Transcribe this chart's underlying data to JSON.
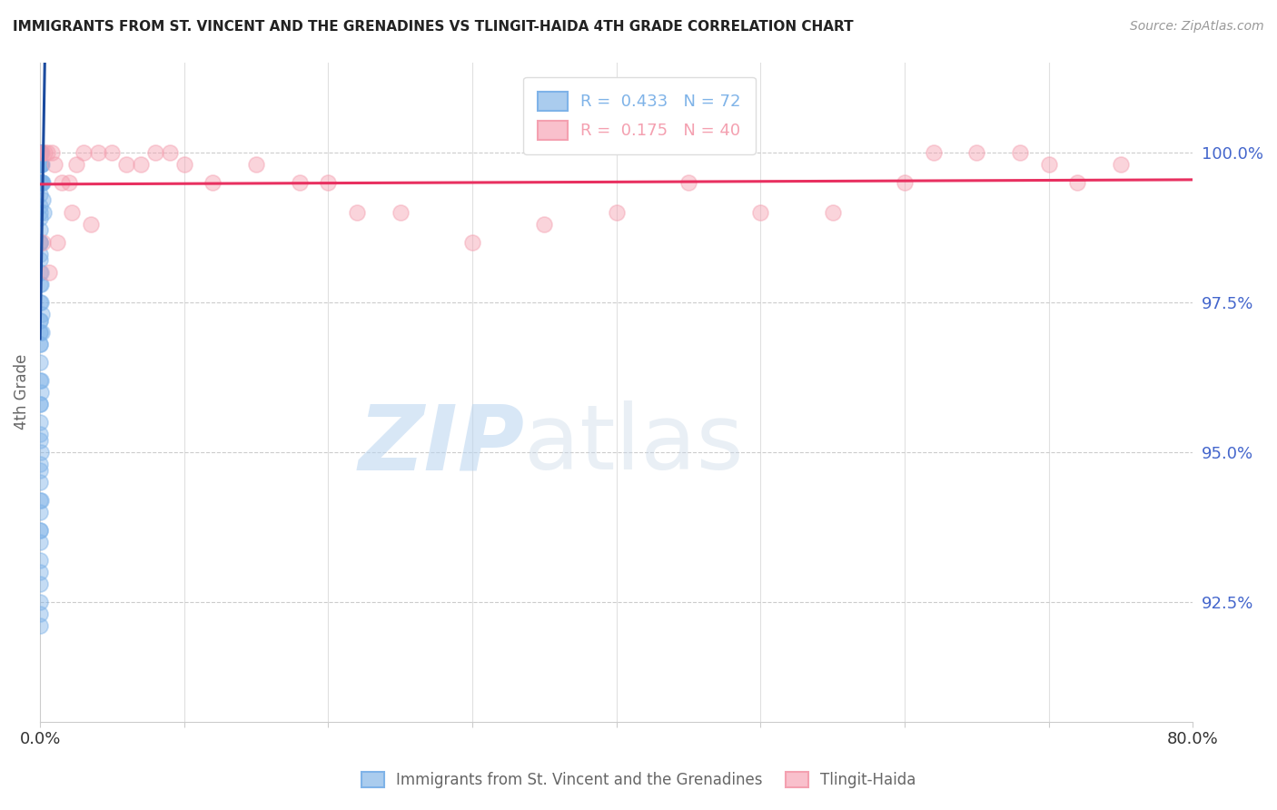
{
  "title": "IMMIGRANTS FROM ST. VINCENT AND THE GRENADINES VS TLINGIT-HAIDA 4TH GRADE CORRELATION CHART",
  "source": "Source: ZipAtlas.com",
  "ylabel": "4th Grade",
  "yticks": [
    92.5,
    95.0,
    97.5,
    100.0
  ],
  "ytick_labels": [
    "92.5%",
    "95.0%",
    "97.5%",
    "100.0%"
  ],
  "xlim": [
    0.0,
    80.0
  ],
  "ylim": [
    90.5,
    101.5
  ],
  "blue_label": "Immigrants from St. Vincent and the Grenadines",
  "pink_label": "Tlingit-Haida",
  "blue_R": 0.433,
  "blue_N": 72,
  "pink_R": 0.175,
  "pink_N": 40,
  "blue_color": "#7fb3e8",
  "pink_color": "#f4a0b0",
  "blue_line_color": "#1a4a9e",
  "pink_line_color": "#e83060",
  "watermark_zip": "ZIP",
  "watermark_atlas": "atlas",
  "blue_x": [
    0.0,
    0.0,
    0.0,
    0.0,
    0.0,
    0.0,
    0.0,
    0.0,
    0.02,
    0.03,
    0.04,
    0.05,
    0.06,
    0.07,
    0.08,
    0.09,
    0.1,
    0.12,
    0.15,
    0.18,
    0.2,
    0.25,
    0.0,
    0.0,
    0.0,
    0.0,
    0.0,
    0.01,
    0.02,
    0.03,
    0.05,
    0.07,
    0.1,
    0.13,
    0.0,
    0.0,
    0.0,
    0.01,
    0.03,
    0.06,
    0.0,
    0.0,
    0.02,
    0.04,
    0.0,
    0.01,
    0.03,
    0.0,
    0.01,
    0.0,
    0.01,
    0.0,
    0.0,
    0.0,
    0.0,
    0.0,
    0.0,
    0.0,
    0.0,
    0.0,
    0.0,
    0.0,
    0.0,
    0.0,
    0.0,
    0.0,
    0.0,
    0.0,
    0.0,
    0.0,
    0.0,
    0.0
  ],
  "blue_y": [
    100.0,
    100.0,
    100.0,
    100.0,
    100.0,
    100.0,
    100.0,
    100.0,
    100.0,
    100.0,
    100.0,
    99.8,
    99.8,
    99.8,
    99.8,
    99.8,
    99.5,
    99.5,
    99.5,
    99.5,
    99.2,
    99.0,
    99.3,
    99.1,
    98.9,
    98.7,
    98.5,
    98.5,
    98.3,
    98.0,
    97.8,
    97.5,
    97.3,
    97.0,
    97.2,
    97.0,
    96.8,
    96.5,
    96.2,
    96.0,
    95.8,
    95.5,
    95.3,
    95.0,
    94.8,
    94.5,
    94.2,
    94.0,
    93.7,
    93.5,
    93.2,
    93.0,
    92.8,
    92.5,
    92.3,
    92.1,
    98.2,
    97.8,
    97.2,
    96.8,
    96.2,
    95.8,
    95.2,
    94.7,
    94.2,
    93.7,
    99.5,
    99.0,
    98.5,
    98.0,
    97.5,
    97.0
  ],
  "pink_x": [
    0.1,
    0.3,
    0.5,
    0.8,
    1.0,
    1.5,
    2.0,
    2.5,
    3.0,
    4.0,
    5.0,
    6.0,
    7.0,
    8.0,
    9.0,
    10.0,
    12.0,
    15.0,
    18.0,
    20.0,
    22.0,
    25.0,
    30.0,
    35.0,
    40.0,
    45.0,
    50.0,
    55.0,
    60.0,
    62.0,
    65.0,
    68.0,
    70.0,
    72.0,
    75.0,
    0.2,
    0.6,
    1.2,
    2.2,
    3.5
  ],
  "pink_y": [
    100.0,
    100.0,
    100.0,
    100.0,
    99.8,
    99.5,
    99.5,
    99.8,
    100.0,
    100.0,
    100.0,
    99.8,
    99.8,
    100.0,
    100.0,
    99.8,
    99.5,
    99.8,
    99.5,
    99.5,
    99.0,
    99.0,
    98.5,
    98.8,
    99.0,
    99.5,
    99.0,
    99.0,
    99.5,
    100.0,
    100.0,
    100.0,
    99.8,
    99.5,
    99.8,
    98.5,
    98.0,
    98.5,
    99.0,
    98.8
  ]
}
